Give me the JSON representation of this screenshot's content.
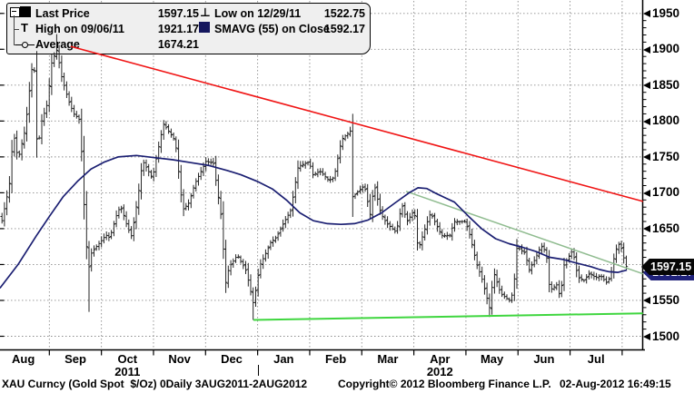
{
  "colors": {
    "bar": "#1c1c1c",
    "sma": "#1b1f72",
    "red_trend": "#f01414",
    "support_green": "#3fd63f",
    "resistance_green": "#90bc90",
    "grid": "#8c8c8c",
    "axis": "#000000",
    "legend_bg": "#efefef",
    "tag_black": "#060606",
    "tag_navy": "#20227b"
  },
  "legend": {
    "items": [
      {
        "icon": "black-square",
        "label": "Last Price",
        "value": "1597.15"
      },
      {
        "icon": "high-marker",
        "glyph": "T",
        "label": "High on 09/06/11",
        "value": "1921.17"
      },
      {
        "icon": "average-marker",
        "label": "Average",
        "value": "1674.21"
      },
      {
        "icon": "low-marker",
        "glyph": "⊥",
        "label": "Low on 12/29/11",
        "value": "1522.75"
      },
      {
        "icon": "navy-square",
        "label": "SMAVG (55) on Close",
        "value": "1592.17"
      }
    ]
  },
  "price_tags": {
    "last": "1597.15",
    "smavg": "1592.17"
  },
  "x_axis": {
    "months": [
      "Aug",
      "Sep",
      "Oct",
      "Nov",
      "Dec",
      "Jan",
      "Feb",
      "Mar",
      "Apr",
      "May",
      "Jun",
      "Jul"
    ],
    "years": [
      {
        "label": "2011",
        "t_center": 2.5
      },
      {
        "label": "2012",
        "t_center": 8.5
      }
    ],
    "separator_t": 5
  },
  "y_axis": {
    "min": 1500,
    "max": 1950,
    "major_step": 50,
    "minor_step": 10
  },
  "footer": {
    "left": "XAU Curncy (Gold Spot  $/Oz) 0Daily 3AUG2011-2AUG2012",
    "center": "Copyright© 2012 Bloomberg Finance L.P.",
    "right": "02-Aug-2012 16:49:15"
  },
  "chart_data": {
    "type": "ohlc-bar",
    "instrument": "XAU Curncy (Gold Spot $/Oz)",
    "period": "Daily",
    "range": "3AUG2011-2AUG2012",
    "ylim": [
      1500,
      1950
    ],
    "stats": {
      "last_price": 1597.15,
      "high": {
        "date": "09/06/11",
        "value": 1921.17
      },
      "low": {
        "date": "12/29/11",
        "value": 1522.75
      },
      "average": 1674.21,
      "smavg_55_on_close": 1592.17
    },
    "t_unit": "months since 1 Aug 2011 (0 = Aug 2011, 12 = Aug 2012)",
    "bars": {
      "count": 252,
      "t_start": 0.09,
      "t_end": 12.08
    },
    "close_keypoints": [
      [
        0.09,
        1661
      ],
      [
        0.23,
        1710
      ],
      [
        0.31,
        1784
      ],
      [
        0.4,
        1746
      ],
      [
        0.54,
        1790
      ],
      [
        0.63,
        1852
      ],
      [
        0.7,
        1894
      ],
      [
        0.73,
        1829
      ],
      [
        0.77,
        1754
      ],
      [
        0.84,
        1797
      ],
      [
        0.96,
        1824
      ],
      [
        1.05,
        1884
      ],
      [
        1.15,
        1900
      ],
      [
        1.22,
        1866
      ],
      [
        1.36,
        1830
      ],
      [
        1.47,
        1810
      ],
      [
        1.57,
        1803
      ],
      [
        1.64,
        1737
      ],
      [
        1.68,
        1656
      ],
      [
        1.75,
        1592
      ],
      [
        1.81,
        1616
      ],
      [
        1.88,
        1623
      ],
      [
        2.09,
        1641
      ],
      [
        2.16,
        1637
      ],
      [
        2.32,
        1676
      ],
      [
        2.39,
        1678
      ],
      [
        2.5,
        1652
      ],
      [
        2.58,
        1639
      ],
      [
        2.71,
        1699
      ],
      [
        2.79,
        1745
      ],
      [
        2.98,
        1720
      ],
      [
        3.07,
        1754
      ],
      [
        3.19,
        1796
      ],
      [
        3.28,
        1787
      ],
      [
        3.42,
        1772
      ],
      [
        3.56,
        1676
      ],
      [
        3.68,
        1686
      ],
      [
        3.79,
        1712
      ],
      [
        4.01,
        1744
      ],
      [
        4.15,
        1741
      ],
      [
        4.31,
        1662
      ],
      [
        4.38,
        1572
      ],
      [
        4.45,
        1596
      ],
      [
        4.61,
        1613
      ],
      [
        4.78,
        1591
      ],
      [
        4.92,
        1545
      ],
      [
        5.04,
        1598
      ],
      [
        5.15,
        1615
      ],
      [
        5.25,
        1631
      ],
      [
        5.36,
        1638
      ],
      [
        5.5,
        1658
      ],
      [
        5.64,
        1676
      ],
      [
        5.71,
        1708
      ],
      [
        5.78,
        1737
      ],
      [
        5.99,
        1743
      ],
      [
        6.06,
        1725
      ],
      [
        6.2,
        1730
      ],
      [
        6.37,
        1717
      ],
      [
        6.47,
        1722
      ],
      [
        6.61,
        1774
      ],
      [
        6.79,
        1787
      ],
      [
        6.82,
        1694
      ],
      [
        7.05,
        1710
      ],
      [
        7.16,
        1670
      ],
      [
        7.24,
        1712
      ],
      [
        7.36,
        1672
      ],
      [
        7.47,
        1658
      ],
      [
        7.66,
        1645
      ],
      [
        7.77,
        1684
      ],
      [
        7.87,
        1660
      ],
      [
        8.01,
        1676
      ],
      [
        8.08,
        1620
      ],
      [
        8.25,
        1658
      ],
      [
        8.32,
        1672
      ],
      [
        8.48,
        1648
      ],
      [
        8.55,
        1640
      ],
      [
        8.69,
        1641
      ],
      [
        8.78,
        1660
      ],
      [
        8.99,
        1660
      ],
      [
        9.08,
        1640
      ],
      [
        9.2,
        1602
      ],
      [
        9.3,
        1582
      ],
      [
        9.46,
        1538
      ],
      [
        9.53,
        1590
      ],
      [
        9.67,
        1559
      ],
      [
        9.84,
        1550
      ],
      [
        9.91,
        1562
      ],
      [
        9.98,
        1624
      ],
      [
        10.14,
        1616
      ],
      [
        10.21,
        1592
      ],
      [
        10.33,
        1608
      ],
      [
        10.44,
        1626
      ],
      [
        10.54,
        1618
      ],
      [
        10.61,
        1564
      ],
      [
        10.75,
        1572
      ],
      [
        10.82,
        1550
      ],
      [
        10.86,
        1596
      ],
      [
        11.05,
        1620
      ],
      [
        11.15,
        1582
      ],
      [
        11.27,
        1578
      ],
      [
        11.38,
        1588
      ],
      [
        11.48,
        1582
      ],
      [
        11.59,
        1584
      ],
      [
        11.71,
        1574
      ],
      [
        11.78,
        1585
      ],
      [
        11.83,
        1605
      ],
      [
        11.9,
        1625
      ],
      [
        11.96,
        1630
      ],
      [
        12.01,
        1615
      ],
      [
        12.08,
        1597.15
      ]
    ],
    "sma_keypoints": [
      [
        0.05,
        1567
      ],
      [
        0.4,
        1600
      ],
      [
        0.75,
        1640
      ],
      [
        1.01,
        1668
      ],
      [
        1.27,
        1695
      ],
      [
        1.54,
        1716
      ],
      [
        1.8,
        1733
      ],
      [
        2.06,
        1743
      ],
      [
        2.32,
        1750
      ],
      [
        2.67,
        1752
      ],
      [
        3.02,
        1749
      ],
      [
        3.37,
        1746
      ],
      [
        3.72,
        1742
      ],
      [
        4.07,
        1738
      ],
      [
        4.42,
        1731
      ],
      [
        4.68,
        1725
      ],
      [
        4.99,
        1716
      ],
      [
        5.29,
        1705
      ],
      [
        5.55,
        1690
      ],
      [
        5.81,
        1672
      ],
      [
        6.07,
        1661
      ],
      [
        6.34,
        1657
      ],
      [
        6.6,
        1656
      ],
      [
        6.86,
        1657
      ],
      [
        7.12,
        1662
      ],
      [
        7.38,
        1672
      ],
      [
        7.64,
        1686
      ],
      [
        7.91,
        1700
      ],
      [
        8.08,
        1707
      ],
      [
        8.25,
        1706
      ],
      [
        8.43,
        1699
      ],
      [
        8.6,
        1693
      ],
      [
        8.78,
        1687
      ],
      [
        9.04,
        1668
      ],
      [
        9.3,
        1650
      ],
      [
        9.57,
        1636
      ],
      [
        9.83,
        1629
      ],
      [
        10.09,
        1624
      ],
      [
        10.35,
        1618
      ],
      [
        10.61,
        1610
      ],
      [
        10.87,
        1607
      ],
      [
        11.13,
        1602
      ],
      [
        11.4,
        1597
      ],
      [
        11.57,
        1593
      ],
      [
        11.75,
        1590
      ],
      [
        11.92,
        1589
      ],
      [
        12.09,
        1592.17
      ]
    ],
    "extremes": [
      {
        "t": 1.15,
        "type": "high",
        "value": 1921.17
      },
      {
        "t": 1.75,
        "type": "low",
        "value": 1534
      },
      {
        "t": 4.92,
        "type": "low",
        "value": 1522.75
      },
      {
        "t": 9.46,
        "type": "low",
        "value": 1527
      },
      {
        "t": 12.08,
        "type": "close",
        "value": 1597.15
      }
    ],
    "trendlines": [
      {
        "name": "downtrend-resistance",
        "color_key": "red_trend",
        "width": 1.6,
        "from": [
          1.41,
          1904
        ],
        "to": [
          12.4,
          1688
        ]
      },
      {
        "name": "minor-resistance",
        "color_key": "resistance_green",
        "width": 1.5,
        "from": [
          7.85,
          1702
        ],
        "to": [
          12.4,
          1587
        ]
      },
      {
        "name": "support",
        "color_key": "support_green",
        "width": 2,
        "from": [
          4.92,
          1522.75
        ],
        "to": [
          12.4,
          1532
        ]
      }
    ]
  }
}
